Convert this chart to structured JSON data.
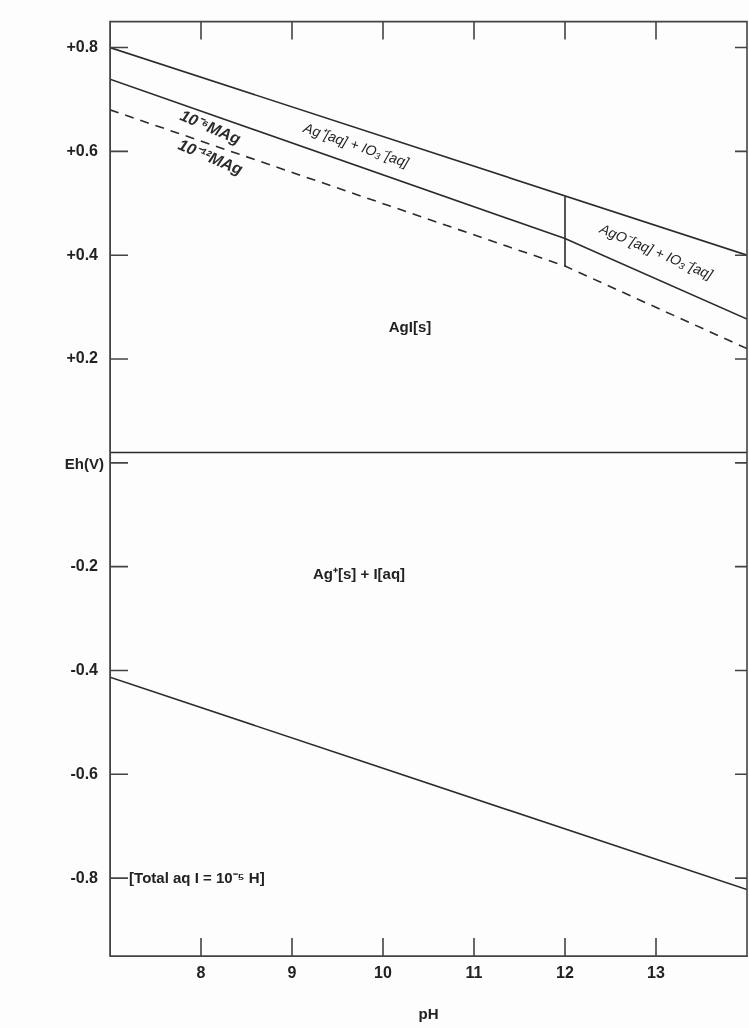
{
  "chart_data": {
    "type": "line",
    "xlabel": "pH",
    "ylabel": "Eh(V)",
    "xlim": [
      7,
      14
    ],
    "ylim": [
      -0.95,
      0.85
    ],
    "xticks": [
      8,
      9,
      10,
      11,
      12,
      13
    ],
    "yticks": [
      {
        "value": 0.8,
        "label": "+0.8"
      },
      {
        "value": 0.6,
        "label": "+0.6"
      },
      {
        "value": 0.4,
        "label": "+0.4"
      },
      {
        "value": 0.2,
        "label": "+0.2"
      },
      {
        "value": 0,
        "label": null
      },
      {
        "value": -0.2,
        "label": "-0.2"
      },
      {
        "value": -0.4,
        "label": "-0.4"
      },
      {
        "value": -0.6,
        "label": "-0.6"
      },
      {
        "value": -0.8,
        "label": "-0.8"
      }
    ],
    "marker": "none",
    "legend": false,
    "series": [
      {
        "color": "#2b2b2b",
        "x": [
          7,
          14
        ],
        "values": [
          0.8,
          0.4
        ]
      },
      {
        "name": "10⁻⁶MAg",
        "color": "#2b2b2b",
        "x": [
          7,
          12,
          14
        ],
        "values": [
          0.739,
          0.432,
          0.277
        ]
      },
      {
        "name": "10⁻¹²MAg",
        "color": "#2b2b2b",
        "line_style": "dashed",
        "x": [
          7,
          12,
          14
        ],
        "values": [
          0.68,
          0.379,
          0.22
        ]
      },
      {
        "color": "#2b2b2b",
        "x": [
          12,
          12
        ],
        "values": [
          0.379,
          0.513
        ]
      },
      {
        "color": "#2b2b2b",
        "x": [
          7,
          14
        ],
        "values": [
          0.02,
          0.02
        ]
      },
      {
        "color": "#2b2b2b",
        "x": [
          7,
          14
        ],
        "values": [
          -0.413,
          -0.822
        ]
      }
    ],
    "annotations": [
      "Ag⁺[aq] + IO₃⁻[aq]",
      "AgO⁻[aq] + IO₃⁻[aq]",
      "AgI[s]",
      "Ag⁺[s] + I[aq]",
      "[Total aq I = 10⁻⁵ H]"
    ]
  }
}
